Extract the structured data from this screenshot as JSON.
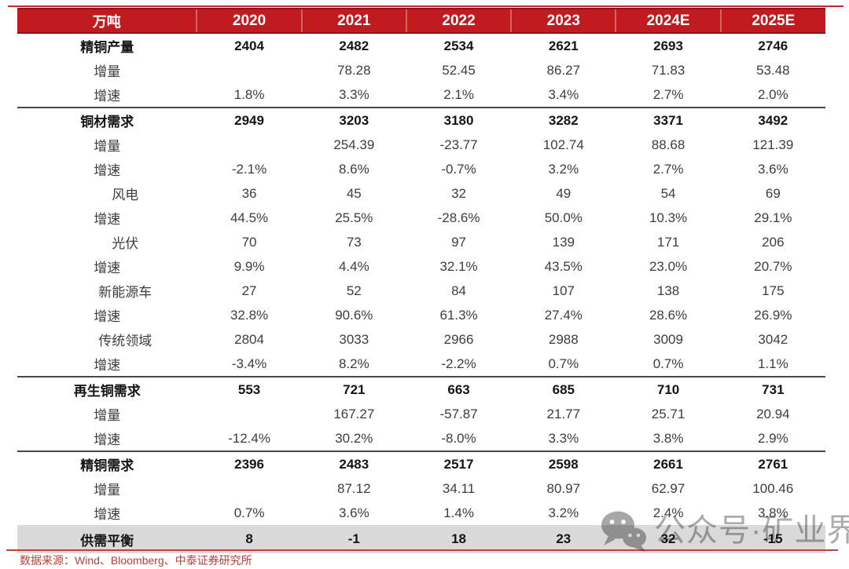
{
  "chart_data": {
    "type": "table",
    "unit_header": "万吨",
    "year_columns": [
      "2020",
      "2021",
      "2022",
      "2023",
      "2024E",
      "2025E"
    ],
    "rows": [
      {
        "label": "精铜产量",
        "style": "section",
        "rule_above": false,
        "values": [
          "2404",
          "2482",
          "2534",
          "2621",
          "2693",
          "2746"
        ]
      },
      {
        "label": "增量",
        "style": "item",
        "rule_above": false,
        "values": [
          "",
          "78.28",
          "52.45",
          "86.27",
          "71.83",
          "53.48"
        ]
      },
      {
        "label": "增速",
        "style": "item",
        "rule_above": false,
        "values": [
          "1.8%",
          "3.3%",
          "2.1%",
          "3.4%",
          "2.7%",
          "2.0%"
        ]
      },
      {
        "label": "铜材需求",
        "style": "section",
        "rule_above": true,
        "values": [
          "2949",
          "3203",
          "3180",
          "3282",
          "3371",
          "3492"
        ]
      },
      {
        "label": "增量",
        "style": "item",
        "rule_above": false,
        "values": [
          "",
          "254.39",
          "-23.77",
          "102.74",
          "88.68",
          "121.39"
        ]
      },
      {
        "label": "增速",
        "style": "item",
        "rule_above": false,
        "values": [
          "-2.1%",
          "8.6%",
          "-0.7%",
          "3.2%",
          "2.7%",
          "3.6%"
        ]
      },
      {
        "label": "风电",
        "style": "sub",
        "rule_above": false,
        "values": [
          "36",
          "45",
          "32",
          "49",
          "54",
          "69"
        ]
      },
      {
        "label": "增速",
        "style": "item",
        "rule_above": false,
        "values": [
          "44.5%",
          "25.5%",
          "-28.6%",
          "50.0%",
          "10.3%",
          "29.1%"
        ]
      },
      {
        "label": "光伏",
        "style": "sub",
        "rule_above": false,
        "values": [
          "70",
          "73",
          "97",
          "139",
          "171",
          "206"
        ]
      },
      {
        "label": "增速",
        "style": "item",
        "rule_above": false,
        "values": [
          "9.9%",
          "4.4%",
          "32.1%",
          "43.5%",
          "23.0%",
          "20.7%"
        ]
      },
      {
        "label": "新能源车",
        "style": "sub",
        "rule_above": false,
        "values": [
          "27",
          "52",
          "84",
          "107",
          "138",
          "175"
        ]
      },
      {
        "label": "增速",
        "style": "item",
        "rule_above": false,
        "values": [
          "32.8%",
          "90.6%",
          "61.3%",
          "27.4%",
          "28.6%",
          "26.9%"
        ]
      },
      {
        "label": "传统领域",
        "style": "sub",
        "rule_above": false,
        "values": [
          "2804",
          "3033",
          "2966",
          "2988",
          "3009",
          "3042"
        ]
      },
      {
        "label": "增速",
        "style": "item",
        "rule_above": false,
        "values": [
          "-3.4%",
          "8.2%",
          "-2.2%",
          "0.7%",
          "0.7%",
          "1.1%"
        ]
      },
      {
        "label": "再生铜需求",
        "style": "section",
        "rule_above": true,
        "values": [
          "553",
          "721",
          "663",
          "685",
          "710",
          "731"
        ]
      },
      {
        "label": "增量",
        "style": "item",
        "rule_above": false,
        "values": [
          "",
          "167.27",
          "-57.87",
          "21.77",
          "25.71",
          "20.94"
        ]
      },
      {
        "label": "增速",
        "style": "item",
        "rule_above": false,
        "values": [
          "-12.4%",
          "30.2%",
          "-8.0%",
          "3.3%",
          "3.8%",
          "2.9%"
        ]
      },
      {
        "label": "精铜需求",
        "style": "section",
        "rule_above": true,
        "values": [
          "2396",
          "2483",
          "2517",
          "2598",
          "2661",
          "2761"
        ]
      },
      {
        "label": "增量",
        "style": "item",
        "rule_above": false,
        "values": [
          "",
          "87.12",
          "34.11",
          "80.97",
          "62.97",
          "100.46"
        ]
      },
      {
        "label": "增速",
        "style": "item",
        "rule_above": false,
        "values": [
          "0.7%",
          "3.6%",
          "1.4%",
          "3.2%",
          "2.4%",
          "3.8%"
        ]
      },
      {
        "label": "供需平衡",
        "style": "balance",
        "rule_above": false,
        "values": [
          "8",
          "-1",
          "18",
          "23",
          "32",
          "-15"
        ]
      }
    ]
  },
  "footer": {
    "source_text": "数据来源：Wind、Bloomberg、中泰证券研究所"
  },
  "watermark": {
    "icon": "wechat-icon",
    "text": "公众号·矿业界"
  },
  "colors": {
    "header_bg": "#c11a1f",
    "header_border": "#8f1014",
    "section_rule": "#474747",
    "balance_row_bg": "#dadada",
    "source_text_red": "#bd3e3b",
    "bottom_line_red": "#b9473f",
    "watermark_gray": "#a3a3a3"
  }
}
